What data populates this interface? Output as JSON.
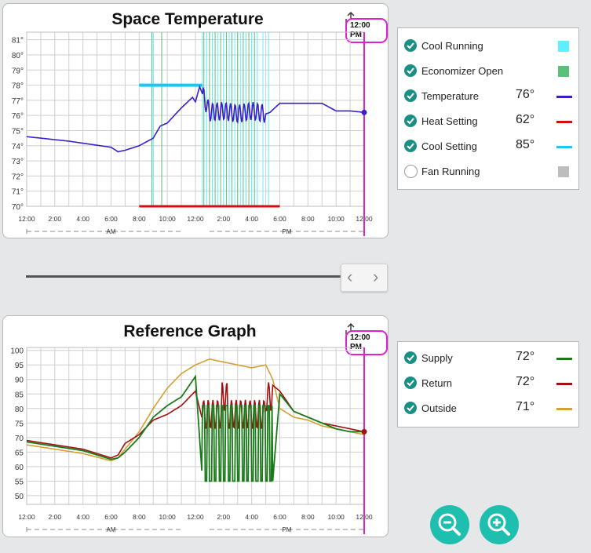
{
  "colors": {
    "accent_check": "#1a8f86",
    "now_marker": "#e020d0",
    "zoom_button": "#1fbfb0",
    "grid": "#cfcfcf"
  },
  "top_chart": {
    "title": "Space Temperature",
    "time_badge": "12:00 PM",
    "y_ticks": [
      "81°",
      "80°",
      "79°",
      "78°",
      "77°",
      "76°",
      "75°",
      "74°",
      "73°",
      "72°",
      "71°",
      "70°"
    ],
    "x_ticks": [
      "12:00",
      "2:00",
      "4:00",
      "6:00",
      "8:00",
      "10:00",
      "12:00",
      "2:00",
      "4:00",
      "6:00",
      "8:00",
      "10:00",
      "12:00"
    ],
    "am_label": "AM",
    "pm_label": "PM"
  },
  "top_legend": {
    "items": [
      {
        "label": "Cool Running",
        "value": "",
        "checked": true,
        "kind": "swatch",
        "color": "#5ef0ff"
      },
      {
        "label": "Economizer Open",
        "value": "",
        "checked": true,
        "kind": "swatch",
        "color": "#5cbf7a"
      },
      {
        "label": "Temperature",
        "value": "76°",
        "checked": true,
        "kind": "line",
        "color": "#3a1ec8"
      },
      {
        "label": "Heat Setting",
        "value": "62°",
        "checked": true,
        "kind": "line",
        "color": "#d01010"
      },
      {
        "label": "Cool Setting",
        "value": "85°",
        "checked": true,
        "kind": "line",
        "color": "#18c8f0"
      },
      {
        "label": "Fan Running",
        "value": "",
        "checked": false,
        "kind": "swatch",
        "color": "#bdbdbd"
      }
    ]
  },
  "bottom_chart": {
    "title": "Reference Graph",
    "time_badge": "12:00 PM",
    "y_ticks": [
      "100",
      "95",
      "90",
      "85",
      "80",
      "75",
      "70",
      "65",
      "60",
      "55",
      "50"
    ],
    "x_ticks": [
      "12:00",
      "2:00",
      "4:00",
      "6:00",
      "8:00",
      "10:00",
      "12:00",
      "2:00",
      "4:00",
      "6:00",
      "8:00",
      "10:00",
      "12:00"
    ],
    "am_label": "AM",
    "pm_label": "PM"
  },
  "bottom_legend": {
    "items": [
      {
        "label": "Supply",
        "value": "72°",
        "checked": true,
        "color": "#1a7a1a"
      },
      {
        "label": "Return",
        "value": "72°",
        "checked": true,
        "color": "#a01010"
      },
      {
        "label": "Outside",
        "value": "71°",
        "checked": true,
        "color": "#d4a030"
      }
    ]
  },
  "chart_data": [
    {
      "type": "line",
      "title": "Space Temperature",
      "xlabel": "",
      "ylabel": "",
      "x_hours": [
        0,
        3,
        6,
        6.5,
        7,
        8,
        9,
        9.5,
        10,
        11,
        11.8,
        12,
        12.3,
        13,
        14,
        15,
        16,
        17,
        17.3,
        18,
        19,
        20,
        21,
        22,
        23,
        24
      ],
      "ylim": [
        70,
        81.5
      ],
      "series": [
        {
          "name": "Temperature",
          "values": [
            74.6,
            74.3,
            73.9,
            73.6,
            73.7,
            74.0,
            74.5,
            75.3,
            75.5,
            76.5,
            77.2,
            76.9,
            77.9,
            76.2,
            76.3,
            76.1,
            76.3,
            76.1,
            76.2,
            76.8,
            76.8,
            76.8,
            76.8,
            76.3,
            76.3,
            76.2
          ]
        },
        {
          "name": "Cool Setting",
          "values": [
            null,
            null,
            null,
            null,
            null,
            null,
            78.0,
            78.0,
            78.0,
            78.0,
            78.0,
            78.0,
            78.0,
            null,
            null,
            null,
            null,
            null,
            null,
            null,
            null,
            null,
            null,
            null,
            null,
            null
          ]
        },
        {
          "name": "Heat Setting",
          "values": [
            null,
            null,
            null,
            null,
            null,
            null,
            70.0,
            70.0,
            70.0,
            70.0,
            70.0,
            70.0,
            70.0,
            70.0,
            70.0,
            70.0,
            70.0,
            70.0,
            70.0,
            70.0,
            null,
            null,
            null,
            null,
            null,
            null
          ]
        }
      ],
      "cool_setting_range_hours": [
        8,
        12.5
      ],
      "heat_setting_range_hours": [
        8,
        18
      ],
      "temperature_oscillation_hours": [
        12.5,
        17
      ],
      "cool_running_hours": [
        9,
        12.5,
        12.8,
        13.2,
        13.6,
        14,
        14.4,
        14.8,
        15.2,
        15.6,
        16,
        16.4,
        16.8,
        17.2
      ],
      "economizer_open_hours": [
        8.9,
        9.6,
        12.6,
        13.0,
        13.4,
        13.8,
        14.2,
        14.6,
        15.0,
        15.4,
        15.8,
        16.2
      ],
      "now_hour": 24
    },
    {
      "type": "line",
      "title": "Reference Graph",
      "xlabel": "",
      "ylabel": "",
      "ylim": [
        47,
        101
      ],
      "x_hours": [
        0,
        2,
        4,
        6,
        6.5,
        7,
        8,
        9,
        10,
        11,
        12,
        12.5,
        13,
        14,
        15,
        16,
        17,
        17.5,
        18,
        19,
        20,
        21,
        22,
        23,
        24
      ],
      "series": [
        {
          "name": "Supply",
          "values": [
            68.5,
            67,
            65.5,
            62.5,
            63,
            65,
            70,
            77,
            81,
            84,
            91,
            55,
            80,
            55,
            80,
            55,
            80,
            55,
            85,
            79,
            77,
            75,
            73,
            72,
            72
          ]
        },
        {
          "name": "Return",
          "values": [
            69,
            67.5,
            66,
            63,
            64,
            68,
            71,
            76,
            78,
            81,
            86,
            76,
            79,
            85,
            78,
            82,
            77,
            88,
            86,
            79,
            77,
            75,
            74,
            73,
            72
          ]
        },
        {
          "name": "Outside",
          "values": [
            67.5,
            66,
            64.5,
            62,
            63,
            66,
            72,
            80,
            87,
            92,
            95,
            96,
            97,
            96,
            95,
            94,
            95,
            90,
            80,
            77,
            76,
            74,
            73,
            72,
            71
          ]
        }
      ],
      "supply_oscillation_hours": [
        12.5,
        17.5
      ],
      "return_oscillation_hours": [
        12.5,
        17.5
      ],
      "now_hour": 24
    }
  ]
}
